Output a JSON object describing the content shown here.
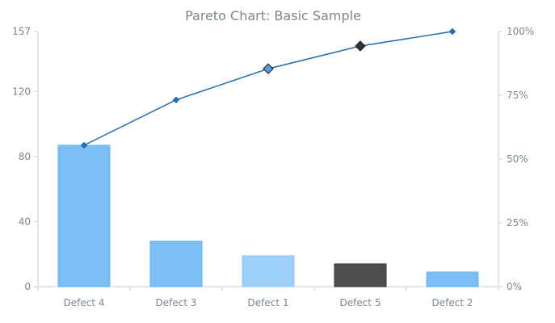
{
  "chart_data": {
    "type": "bar",
    "title": "Pareto Chart: Basic Sample",
    "categories": [
      "Defect 4",
      "Defect 3",
      "Defect 1",
      "Defect 5",
      "Defect 2"
    ],
    "series": [
      {
        "type": "bar",
        "values": [
          87,
          28,
          19,
          14,
          9
        ],
        "colors": [
          "#7cbef6",
          "#7cbef6",
          "#9dcff8",
          "#4d4d4d",
          "#7cbef6"
        ],
        "edge_colors": [
          "#64b5f6",
          "#64b5f6",
          "#90caf9",
          "#3a3a3a",
          "#64b5f6"
        ]
      },
      {
        "type": "line",
        "axis": "right",
        "values": [
          55.4,
          73.2,
          85.4,
          94.3,
          100
        ],
        "color": "#1f6fb2",
        "marker_colors": [
          "#1e6fb5",
          "#1e6fb5",
          "#5a9be0",
          "#333333",
          "#1e6fb5"
        ],
        "marker_sizes": [
          "small",
          "small",
          "large",
          "large",
          "small"
        ]
      }
    ],
    "y_left": {
      "ylim": [
        0,
        157
      ],
      "ticks": [
        0,
        40,
        80,
        120,
        157
      ]
    },
    "y_right": {
      "ylim": [
        0,
        100
      ],
      "ticks": [
        0,
        25,
        50,
        75,
        100
      ],
      "tick_suffix": "%"
    },
    "grid": false,
    "legend": "none"
  }
}
